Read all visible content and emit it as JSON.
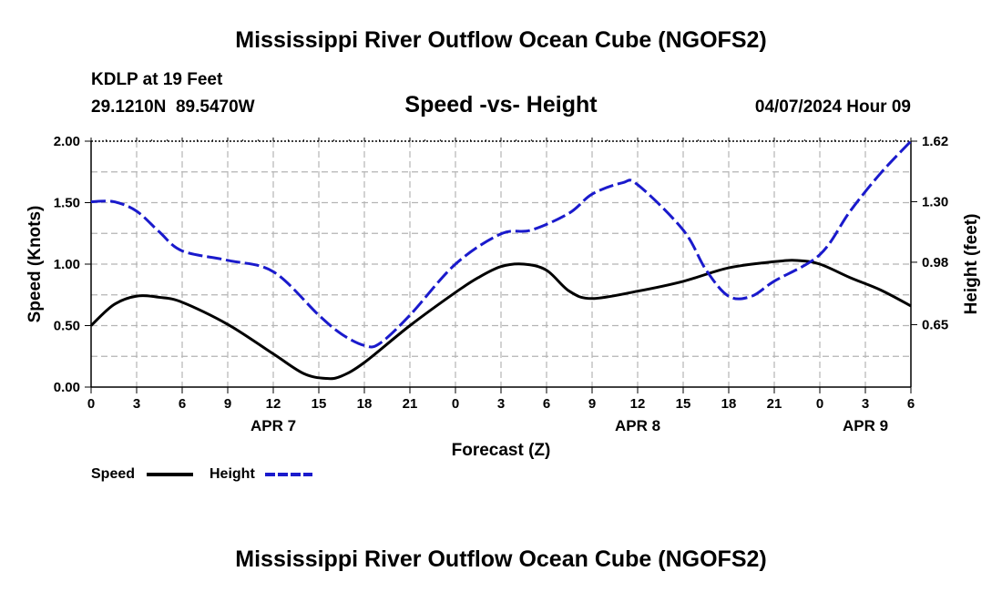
{
  "page": {
    "title": "Mississippi River Outflow Ocean Cube (NGOFS2)",
    "station": "KDLP at 19 Feet",
    "coords": "29.1210N  89.5470W",
    "datetime": "04/07/2024 Hour 09",
    "footer_title": "Mississippi River Outflow Ocean Cube (NGOFS2)"
  },
  "chart_data": {
    "type": "line",
    "title": "Speed -vs- Height",
    "xlabel": "Forecast (Z)",
    "ylabel_left": "Speed (Knots)",
    "ylabel_right": "Height (feet)",
    "x_hours_range": [
      0,
      54
    ],
    "x_tick_step_hours": 3,
    "x_tick_labels": [
      "0",
      "3",
      "6",
      "9",
      "12",
      "15",
      "18",
      "21",
      "0",
      "3",
      "6",
      "9",
      "12",
      "15",
      "18",
      "21",
      "0",
      "3",
      "6"
    ],
    "date_labels": [
      {
        "label": "APR 7",
        "hour": 12
      },
      {
        "label": "APR 8",
        "hour": 36
      },
      {
        "label": "APR 9",
        "hour": 51
      }
    ],
    "y_left": {
      "min": 0,
      "max": 2.0,
      "ticks": [
        "0.00",
        "0.50",
        "1.00",
        "1.50",
        "2.00"
      ],
      "tick_values": [
        0,
        0.5,
        1.0,
        1.5,
        2.0
      ]
    },
    "y_right": {
      "ticks": [
        "0.65",
        "0.98",
        "1.30",
        "1.62"
      ],
      "tick_values": [
        0.65,
        0.98,
        1.3,
        1.62
      ],
      "min": 0.32,
      "max": 1.62
    },
    "legend": [
      {
        "name": "Speed",
        "color": "#000000",
        "dash": "solid"
      },
      {
        "name": "Height",
        "color": "#1a1acc",
        "dash": "dashed"
      }
    ],
    "series": [
      {
        "name": "Speed",
        "axis": "left",
        "color": "#000000",
        "x": [
          0,
          1.5,
          3,
          4.5,
          6,
          9,
          12,
          14,
          15.5,
          16.5,
          18,
          21,
          24,
          25.5,
          27,
          28.5,
          30,
          31.5,
          33,
          36,
          39,
          42,
          45,
          46.5,
          48,
          50,
          52,
          54
        ],
        "values": [
          0.5,
          0.67,
          0.74,
          0.73,
          0.69,
          0.51,
          0.27,
          0.11,
          0.07,
          0.09,
          0.2,
          0.5,
          0.77,
          0.89,
          0.98,
          1.0,
          0.95,
          0.78,
          0.72,
          0.78,
          0.86,
          0.97,
          1.02,
          1.03,
          1.0,
          0.89,
          0.79,
          0.66
        ]
      },
      {
        "name": "Height",
        "axis": "right",
        "color": "#1a1acc",
        "x": [
          0,
          1.5,
          3,
          4.5,
          6,
          9,
          12,
          15,
          16.5,
          18,
          19,
          21,
          24,
          27,
          29,
          31.5,
          33,
          35,
          36,
          39,
          40.5,
          42,
          43.5,
          45,
          48,
          50,
          52,
          54
        ],
        "values": [
          1.3,
          1.3,
          1.25,
          1.14,
          1.04,
          0.99,
          0.93,
          0.7,
          0.6,
          0.54,
          0.55,
          0.7,
          0.97,
          1.13,
          1.15,
          1.24,
          1.34,
          1.4,
          1.39,
          1.15,
          0.94,
          0.8,
          0.8,
          0.88,
          1.02,
          1.25,
          1.45,
          1.62
        ]
      }
    ]
  }
}
